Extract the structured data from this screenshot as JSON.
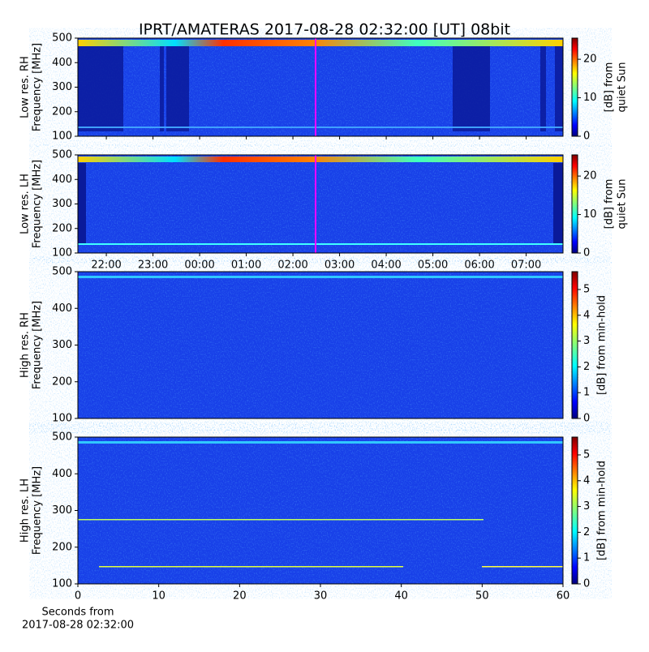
{
  "chart_data": [
    {
      "type": "heatmap",
      "title": "IPRT/AMATERAS 2017-08-28 02:32:00 [UT]   08bit",
      "ylabel": [
        "Low res. RH",
        "Frequency [MHz]"
      ],
      "ylim": [
        100,
        500
      ],
      "yticks": [
        100,
        200,
        300,
        400,
        500
      ],
      "colorbar": {
        "label": [
          "[dB] from",
          "quiet Sun"
        ],
        "lim": [
          0,
          25.5
        ],
        "ticks": [
          0,
          10,
          20
        ]
      }
    },
    {
      "type": "heatmap",
      "ylabel": [
        "Low res. LH",
        "Frequency [MHz]"
      ],
      "ylim": [
        100,
        500
      ],
      "yticks": [
        100,
        200,
        300,
        400,
        500
      ],
      "xlim": [
        21.39,
        31.79
      ],
      "xticks": [
        {
          "value": 22,
          "label": "22:00"
        },
        {
          "value": 23,
          "label": "23:00"
        },
        {
          "value": 24,
          "label": "00:00"
        },
        {
          "value": 25,
          "label": "01:00"
        },
        {
          "value": 26,
          "label": "02:00"
        },
        {
          "value": 27,
          "label": "03:00"
        },
        {
          "value": 28,
          "label": "04:00"
        },
        {
          "value": 29,
          "label": "05:00"
        },
        {
          "value": 30,
          "label": "06:00"
        },
        {
          "value": 31,
          "label": "07:00"
        }
      ],
      "colorbar": {
        "label": [
          "[dB] from",
          "quiet Sun"
        ],
        "lim": [
          0,
          25.5
        ],
        "ticks": [
          0,
          10,
          20
        ]
      }
    },
    {
      "type": "heatmap",
      "ylabel": [
        "High res. RH",
        "Frequency [MHz]"
      ],
      "ylim": [
        100,
        500
      ],
      "yticks": [
        100,
        200,
        300,
        400,
        500
      ],
      "colorbar": {
        "label": [
          "[dB] from min-hold"
        ],
        "lim": [
          0,
          5.69
        ],
        "ticks": [
          0,
          1,
          2,
          3,
          4,
          5
        ]
      }
    },
    {
      "type": "heatmap",
      "ylabel": [
        "High res. LH",
        "Frequency [MHz]"
      ],
      "ylim": [
        100,
        500
      ],
      "yticks": [
        100,
        200,
        300,
        400,
        500
      ],
      "xlim": [
        0,
        60
      ],
      "xticks": [
        0,
        10,
        20,
        30,
        40,
        50,
        60
      ],
      "xlabel": [
        "Seconds from",
        "2017-08-28 02:32:00"
      ],
      "colorbar": {
        "label": [
          "[dB] from min-hold"
        ],
        "lim": [
          0,
          5.69
        ],
        "ticks": [
          0,
          1,
          2,
          3,
          4,
          5
        ]
      }
    }
  ]
}
